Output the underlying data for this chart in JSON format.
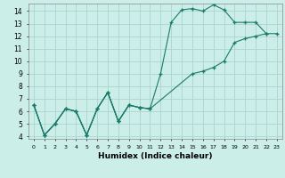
{
  "xlabel": "Humidex (Indice chaleur)",
  "background_color": "#cceee8",
  "grid_color": "#aad4ce",
  "line_color": "#1a7a6a",
  "xlim": [
    -0.5,
    23.5
  ],
  "ylim": [
    3.8,
    14.6
  ],
  "yticks": [
    4,
    5,
    6,
    7,
    8,
    9,
    10,
    11,
    12,
    13,
    14
  ],
  "xticks": [
    0,
    1,
    2,
    3,
    4,
    5,
    6,
    7,
    8,
    9,
    10,
    11,
    12,
    13,
    14,
    15,
    16,
    17,
    18,
    19,
    20,
    21,
    22,
    23
  ],
  "line1_x": [
    0,
    1,
    2,
    3,
    4,
    5,
    6,
    7,
    8,
    9,
    10,
    11
  ],
  "line1_y": [
    6.5,
    4.1,
    5.0,
    6.2,
    6.0,
    4.1,
    6.2,
    7.5,
    5.2,
    6.5,
    6.3,
    6.2
  ],
  "line2_x": [
    0,
    1,
    2,
    3,
    4,
    5,
    6,
    7,
    8,
    9,
    10,
    11,
    12,
    13,
    14,
    15,
    16,
    17,
    18,
    19,
    20,
    21,
    22
  ],
  "line2_y": [
    6.5,
    4.1,
    5.0,
    6.2,
    6.0,
    4.1,
    6.2,
    7.5,
    5.2,
    6.5,
    6.3,
    6.2,
    9.0,
    13.1,
    14.1,
    14.2,
    14.0,
    14.5,
    14.1,
    13.1,
    13.1,
    13.1,
    12.2
  ],
  "line3_x": [
    0,
    1,
    2,
    3,
    4,
    5,
    6,
    7,
    8,
    9,
    10,
    11,
    15,
    16,
    17,
    18,
    19,
    20,
    21,
    22,
    23
  ],
  "line3_y": [
    6.5,
    4.1,
    5.0,
    6.2,
    6.0,
    4.1,
    6.2,
    7.5,
    5.2,
    6.5,
    6.3,
    6.2,
    9.0,
    9.2,
    9.5,
    10.0,
    11.5,
    11.8,
    12.0,
    12.2,
    12.2
  ]
}
